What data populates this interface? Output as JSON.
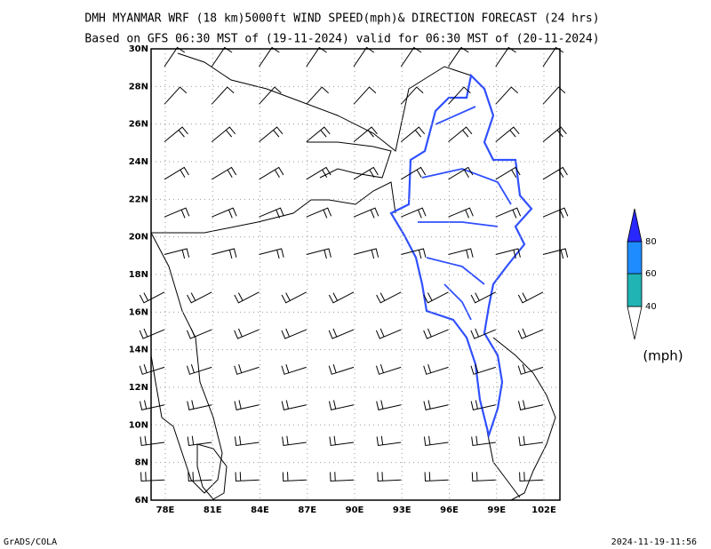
{
  "title": [
    "DMH MYANMAR WRF (18 km)5000ft WIND SPEED(mph)& DIRECTION FORECAST (24 hrs)",
    "Based on GFS 06:30 MST of (19-11-2024) valid for 06:30 MST of (20-11-2024)"
  ],
  "map": {
    "lat_labels": [
      "6N",
      "8N",
      "10N",
      "12N",
      "14N",
      "16N",
      "18N",
      "20N",
      "22N",
      "24N",
      "26N",
      "28N",
      "30N"
    ],
    "lon_labels": [
      "78E",
      "81E",
      "84E",
      "87E",
      "90E",
      "93E",
      "96E",
      "99E",
      "102E"
    ]
  },
  "colorbar": {
    "labels": [
      "40",
      "60",
      "80"
    ],
    "colors": [
      "#ffffff",
      "#20b4b4",
      "#1e8cff",
      "#2828ff"
    ],
    "unit": "(mph)"
  },
  "footer": {
    "left": "GrADS/COLA",
    "right": "2024-11-19-11:56"
  }
}
